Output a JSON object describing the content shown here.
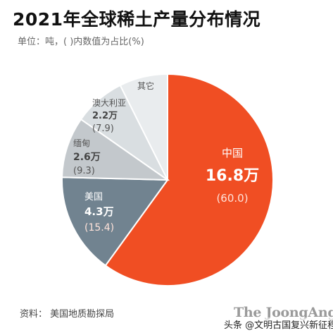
{
  "title": "2021年全球稀土产量分布情况",
  "subtitle": "单位：吨，( )内数值为占比(%)",
  "source": "资料：  美国地质勘探局",
  "brand": "The JoongAng",
  "watermark": "头条 @文明古国复兴新征程",
  "chart_data": {
    "type": "pie",
    "unit": "吨",
    "slices": [
      {
        "name": "中国",
        "value_label": "16.8万",
        "pct_label": "(60.0)",
        "percent": 60.0,
        "color": "#f04e23"
      },
      {
        "name": "美国",
        "value_label": "4.3万",
        "pct_label": "(15.4)",
        "percent": 15.4,
        "color": "#718390"
      },
      {
        "name": "缅甸",
        "value_label": "2.6万",
        "pct_label": "(9.3)",
        "percent": 9.3,
        "color": "#c3c8cc"
      },
      {
        "name": "澳大利亚",
        "value_label": "2.2万",
        "pct_label": "(7.9)",
        "percent": 7.9,
        "color": "#d9dee1"
      },
      {
        "name": "其它",
        "value_label": "",
        "pct_label": "",
        "percent": 7.4,
        "color": "#e9ecee"
      }
    ]
  }
}
